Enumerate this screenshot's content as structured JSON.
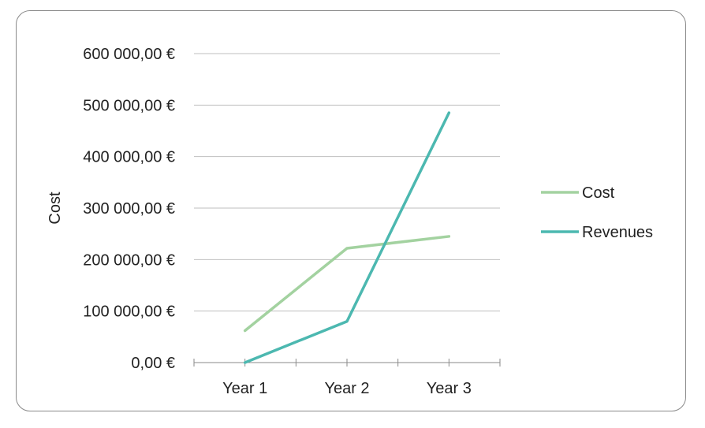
{
  "chart_data": {
    "type": "line",
    "categories": [
      "Year 1",
      "Year 2",
      "Year 3"
    ],
    "series": [
      {
        "name": "Cost",
        "values": [
          62000,
          222000,
          245000
        ],
        "color": "#a3d2a0"
      },
      {
        "name": "Revenues",
        "values": [
          0,
          80000,
          485000
        ],
        "color": "#4cb8b0"
      }
    ],
    "ylabel": "Cost",
    "xlabel": "",
    "ylim": [
      0,
      600000
    ],
    "yticks": [
      0,
      100000,
      200000,
      300000,
      400000,
      500000,
      600000
    ],
    "ytick_labels": [
      "0,00 €",
      "100 000,00 €",
      "200 000,00 €",
      "300 000,00 €",
      "400 000,00 €",
      "500 000,00 €",
      "600 000,00 €"
    ],
    "grid": true,
    "legend_position": "right",
    "gridline_color": "#bfbfbf",
    "axis_color": "#8a8a8a"
  }
}
